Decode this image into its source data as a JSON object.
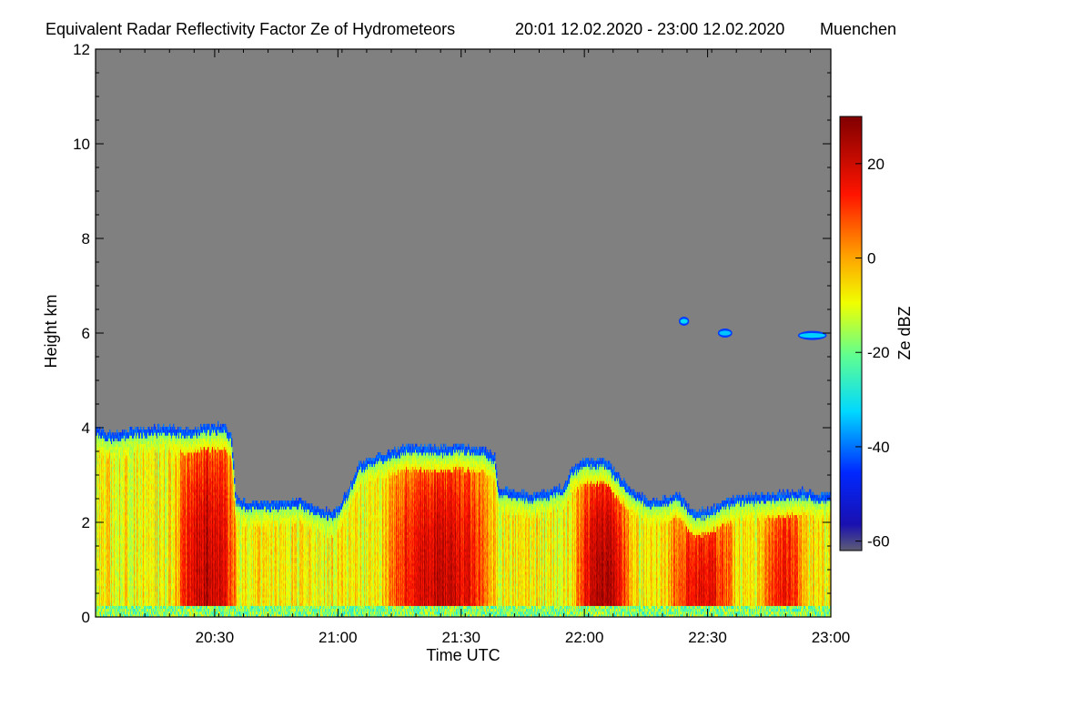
{
  "chart_data": {
    "type": "heatmap",
    "title": "Equivalent Radar Reflectivity Factor Ze of Hydrometeors",
    "period": "20:01 12.02.2020 - 23:00 12.02.2020",
    "location": "Muenchen",
    "xlabel": "Time UTC",
    "ylabel": "Height km",
    "colorbar_label": "Ze dBZ",
    "x_range_minutes": [
      0,
      179
    ],
    "x_start_label": "20:01",
    "x_ticks": [
      {
        "minute": 29,
        "label": "20:30"
      },
      {
        "minute": 59,
        "label": "21:00"
      },
      {
        "minute": 89,
        "label": "21:30"
      },
      {
        "minute": 119,
        "label": "22:00"
      },
      {
        "minute": 149,
        "label": "22:30"
      },
      {
        "minute": 179,
        "label": "23:00"
      }
    ],
    "ylim": [
      0,
      12
    ],
    "y_ticks": [
      0,
      2,
      4,
      6,
      8,
      10,
      12
    ],
    "colorbar_range": [
      -62,
      30
    ],
    "colorbar_ticks": [
      -60,
      -40,
      -20,
      0,
      20
    ],
    "background_color": "#808080",
    "cloud_top_km": [
      [
        0,
        3.95
      ],
      [
        4,
        3.85
      ],
      [
        10,
        3.95
      ],
      [
        16,
        3.98
      ],
      [
        22,
        3.95
      ],
      [
        27,
        4.0
      ],
      [
        31,
        4.05
      ],
      [
        33,
        3.8
      ],
      [
        34,
        2.5
      ],
      [
        37,
        2.4
      ],
      [
        45,
        2.4
      ],
      [
        50,
        2.45
      ],
      [
        53,
        2.3
      ],
      [
        58,
        2.2
      ],
      [
        61,
        2.6
      ],
      [
        64,
        3.2
      ],
      [
        66,
        3.3
      ],
      [
        71,
        3.45
      ],
      [
        76,
        3.6
      ],
      [
        83,
        3.55
      ],
      [
        88,
        3.6
      ],
      [
        94,
        3.55
      ],
      [
        97,
        3.4
      ],
      [
        98,
        2.7
      ],
      [
        106,
        2.55
      ],
      [
        114,
        2.75
      ],
      [
        116,
        3.15
      ],
      [
        119,
        3.3
      ],
      [
        124,
        3.3
      ],
      [
        128,
        2.9
      ],
      [
        131,
        2.6
      ],
      [
        135,
        2.45
      ],
      [
        139,
        2.5
      ],
      [
        142,
        2.6
      ],
      [
        145,
        2.2
      ],
      [
        149,
        2.25
      ],
      [
        155,
        2.5
      ],
      [
        161,
        2.55
      ],
      [
        167,
        2.6
      ],
      [
        173,
        2.65
      ],
      [
        176,
        2.55
      ],
      [
        179,
        2.6
      ]
    ],
    "convective_cores": [
      {
        "x_start": 20,
        "x_end": 34,
        "peak_dbz": 22
      },
      {
        "x_start": 71,
        "x_end": 96,
        "peak_dbz": 21
      },
      {
        "x_start": 117,
        "x_end": 130,
        "peak_dbz": 23
      },
      {
        "x_start": 140,
        "x_end": 155,
        "peak_dbz": 16
      },
      {
        "x_start": 162,
        "x_end": 172,
        "peak_dbz": 14
      }
    ],
    "upper_echoes": [
      {
        "x_start": 142,
        "x_end": 144.5,
        "height_km": 6.25,
        "ze_dbz": -32
      },
      {
        "x_start": 151.5,
        "x_end": 155,
        "height_km": 6.0,
        "ze_dbz": -34
      },
      {
        "x_start": 171,
        "x_end": 178,
        "height_km": 5.95,
        "ze_dbz": -33
      }
    ]
  }
}
